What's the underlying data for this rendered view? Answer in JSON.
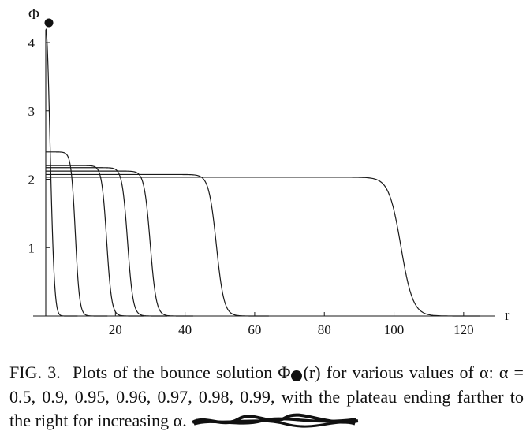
{
  "chart_data": {
    "type": "line",
    "ylabel": "Φ",
    "xlabel": "r",
    "xlim": [
      0,
      130
    ],
    "ylim": [
      0,
      4.3
    ],
    "x_ticks": [
      20,
      40,
      60,
      80,
      100,
      120
    ],
    "y_ticks": [
      1,
      2,
      3,
      4
    ],
    "series": [
      {
        "label": "α = 0.5",
        "plateau": 4.2,
        "r_end": 1.0
      },
      {
        "label": "α = 0.9",
        "plateau": 2.4,
        "r_end": 8.5
      },
      {
        "label": "α = 0.95",
        "plateau": 2.2,
        "r_end": 17.5
      },
      {
        "label": "α = 0.96",
        "plateau": 2.17,
        "r_end": 23.5
      },
      {
        "label": "α = 0.97",
        "plateau": 2.12,
        "r_end": 30.0
      },
      {
        "label": "α = 0.98",
        "plateau": 2.07,
        "r_end": 49.0
      },
      {
        "label": "α = 0.99",
        "plateau": 2.03,
        "r_end": 102.0
      }
    ]
  },
  "caption": {
    "fig_label": "FIG. 3.",
    "part1": "Plots of the bounce solution Φ",
    "part2": "(r) for various values of α: α = 0.5, 0.9, 0.95, 0.96, 0.97, 0.98, 0.99, with the plateau ending farther to the right for increasing α."
  }
}
